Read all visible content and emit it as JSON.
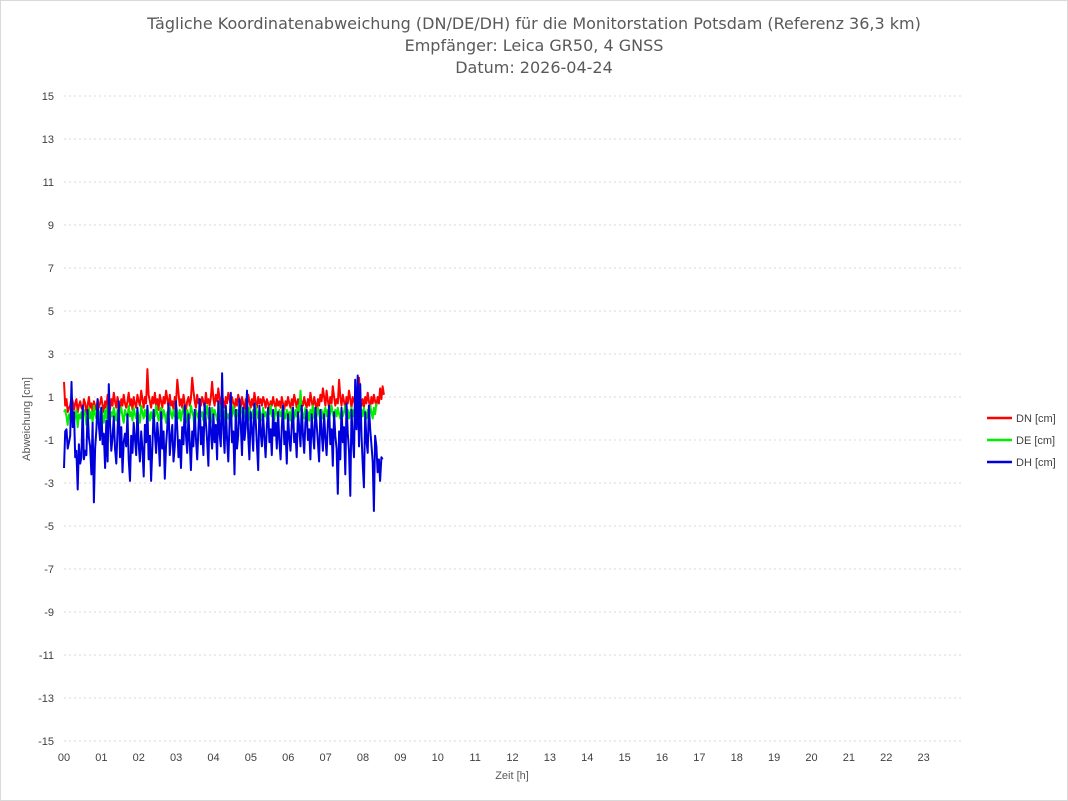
{
  "chart_data": {
    "type": "line",
    "title": [
      "Tägliche Koordinatenabweichung (DN/DE/DH) für die Monitorstation Potsdam (Referenz 36,3 km)",
      "Empfänger: Leica GR50, 4 GNSS",
      "Datum: 2026-04-24"
    ],
    "xlabel": "Zeit [h]",
    "ylabel": "Abweichung [cm]",
    "xlim": [
      0,
      24
    ],
    "ylim": [
      -15,
      15
    ],
    "x_ticks": [
      "00",
      "01",
      "02",
      "03",
      "04",
      "05",
      "06",
      "07",
      "08",
      "09",
      "10",
      "11",
      "12",
      "13",
      "14",
      "15",
      "16",
      "17",
      "18",
      "19",
      "20",
      "21",
      "22",
      "23"
    ],
    "y_ticks": [
      15,
      13,
      11,
      9,
      7,
      5,
      3,
      1,
      -1,
      -3,
      -5,
      -7,
      -9,
      -11,
      -13,
      -15
    ],
    "grid": true,
    "legend_position": "right",
    "sample_interval_h": 0.0333,
    "series": [
      {
        "name": "DN [cm]",
        "color": "#ff0000",
        "values": [
          1.7,
          0.6,
          0.9,
          0.3,
          0.5,
          0.6,
          1.0,
          0.8,
          0.4,
          0.7,
          0.9,
          0.3,
          0.6,
          0.8,
          0.5,
          0.4,
          0.9,
          0.7,
          0.2,
          0.6,
          1.0,
          0.5,
          0.7,
          0.3,
          0.8,
          0.6,
          0.4,
          0.9,
          0.5,
          0.7,
          1.0,
          0.6,
          0.3,
          0.8,
          0.5,
          1.1,
          0.7,
          0.4,
          0.9,
          0.6,
          1.2,
          0.8,
          0.5,
          1.0,
          0.7,
          0.4,
          0.9,
          0.6,
          1.1,
          0.7,
          0.5,
          0.8,
          1.2,
          0.6,
          0.9,
          0.4,
          1.0,
          0.7,
          0.5,
          1.1,
          0.8,
          0.6,
          1.3,
          0.9,
          0.5,
          1.0,
          0.7,
          2.3,
          1.1,
          0.8,
          0.5,
          1.0,
          0.7,
          1.2,
          0.6,
          0.9,
          0.4,
          1.1,
          0.8,
          0.5,
          1.0,
          0.7,
          1.3,
          0.9,
          0.5,
          1.1,
          0.6,
          0.8,
          0.4,
          1.0,
          0.7,
          1.8,
          1.2,
          0.6,
          0.9,
          0.5,
          1.1,
          0.7,
          0.4,
          0.8,
          1.0,
          0.6,
          0.9,
          1.9,
          1.3,
          0.8,
          0.5,
          1.1,
          0.7,
          0.9,
          0.6,
          1.0,
          0.8,
          0.5,
          1.2,
          0.7,
          0.9,
          0.6,
          1.0,
          1.7,
          0.9,
          0.6,
          1.1,
          0.8,
          1.4,
          0.9,
          0.6,
          1.1,
          0.8,
          0.5,
          1.0,
          0.7,
          1.2,
          0.9,
          0.6,
          1.0,
          0.7,
          0.5,
          0.9,
          0.6,
          1.1,
          0.8,
          0.5,
          1.0,
          0.7,
          0.4,
          0.9,
          0.6,
          1.1,
          0.8,
          0.5,
          0.9,
          0.6,
          1.2,
          0.8,
          0.5,
          1.0,
          0.7,
          0.9,
          0.6,
          1.0,
          0.8,
          0.5,
          0.9,
          0.7,
          0.4,
          0.8,
          0.6,
          1.0,
          0.7,
          0.5,
          0.9,
          0.6,
          0.8,
          0.5,
          1.0,
          0.7,
          0.4,
          0.8,
          0.6,
          1.0,
          0.7,
          0.5,
          0.9,
          0.6,
          1.1,
          0.8,
          0.5,
          0.9,
          0.7,
          0.4,
          0.8,
          0.6,
          1.0,
          0.7,
          0.5,
          0.9,
          0.6,
          1.2,
          0.8,
          0.5,
          1.0,
          0.7,
          0.4,
          0.9,
          0.6,
          1.1,
          0.8,
          1.4,
          1.0,
          0.6,
          1.3,
          0.8,
          0.5,
          1.0,
          0.7,
          1.5,
          1.0,
          0.6,
          0.9,
          0.7,
          1.8,
          1.0,
          0.6,
          1.1,
          0.8,
          0.5,
          1.0,
          0.7,
          1.3,
          0.9,
          0.5,
          1.0,
          0.8,
          0.6,
          1.1,
          0.7,
          1.9,
          1.0,
          0.6,
          0.9,
          0.5,
          1.0,
          0.7,
          1.2,
          0.8,
          0.5,
          1.0,
          0.7,
          1.1,
          0.8,
          0.6,
          1.0,
          0.7,
          1.4,
          0.9,
          1.5,
          1.1
        ]
      },
      {
        "name": "DE [cm]",
        "color": "#00ee00",
        "values": [
          0.3,
          0.4,
          0.1,
          -0.3,
          0.2,
          0.0,
          0.5,
          0.3,
          -0.2,
          0.1,
          0.4,
          -0.4,
          0.2,
          0.0,
          0.3,
          -0.1,
          0.4,
          0.2,
          -0.3,
          0.1,
          0.5,
          0.0,
          0.3,
          -0.2,
          0.6,
          0.2,
          0.0,
          0.4,
          -0.1,
          0.3,
          0.5,
          0.1,
          -0.2,
          0.4,
          0.0,
          0.6,
          0.2,
          -0.1,
          0.3,
          0.1,
          0.5,
          0.2,
          -0.1,
          0.4,
          0.0,
          0.3,
          0.5,
          0.1,
          -0.2,
          0.4,
          0.2,
          0.0,
          0.6,
          0.1,
          0.3,
          -0.1,
          0.5,
          0.2,
          0.0,
          0.4,
          0.1,
          -0.2,
          0.6,
          0.3,
          0.0,
          0.4,
          0.1,
          0.5,
          0.2,
          -0.1,
          0.3,
          0.0,
          0.4,
          0.1,
          0.6,
          0.2,
          -0.1,
          0.3,
          0.5,
          0.0,
          0.4,
          0.2,
          -0.2,
          0.3,
          0.1,
          0.5,
          0.2,
          0.0,
          0.4,
          0.1,
          0.6,
          0.3,
          0.0,
          0.4,
          -0.1,
          0.3,
          0.5,
          0.1,
          -0.2,
          0.4,
          0.2,
          0.0,
          0.6,
          0.3,
          0.1,
          -0.6,
          0.4,
          0.2,
          0.0,
          0.5,
          0.1,
          0.3,
          -0.1,
          0.4,
          0.2,
          0.6,
          0.0,
          0.3,
          -0.2,
          0.5,
          0.1,
          0.4,
          0.2,
          -0.1,
          0.3,
          0.6,
          0.1,
          0.4,
          -0.2,
          0.3,
          0.5,
          0.0,
          0.2,
          -0.1,
          0.4,
          0.1,
          0.6,
          0.2,
          0.0,
          0.4,
          0.1,
          -0.2,
          0.3,
          0.5,
          0.1,
          0.4,
          0.0,
          0.3,
          -0.1,
          0.5,
          0.2,
          0.0,
          0.4,
          0.1,
          0.6,
          0.3,
          0.0,
          0.4,
          0.2,
          -0.1,
          0.5,
          0.1,
          0.3,
          0.0,
          0.4,
          0.2,
          0.6,
          0.1,
          0.3,
          -0.1,
          0.5,
          0.2,
          0.0,
          0.4,
          0.1,
          0.3,
          0.6,
          0.2,
          0.0,
          0.4,
          0.1,
          0.3,
          -0.1,
          0.5,
          0.2,
          0.0,
          0.4,
          0.1,
          0.6,
          0.3,
          1.3,
          0.4,
          0.2,
          0.0,
          0.5,
          0.1,
          0.3,
          -0.1,
          0.4,
          0.2,
          0.6,
          0.0,
          0.3,
          0.1,
          0.5,
          0.2,
          -0.1,
          0.4,
          0.0,
          0.3,
          0.5,
          0.1,
          0.4,
          -0.1,
          0.3,
          0.6,
          0.2,
          0.0,
          0.4,
          0.1,
          0.5,
          0.2,
          0.0,
          0.4,
          0.1,
          0.3,
          0.6,
          0.1,
          0.4,
          0.0,
          0.3,
          0.5,
          0.1,
          0.4,
          -0.1,
          0.3,
          0.6,
          0.2,
          0.0,
          0.4,
          0.1,
          0.5,
          0.2,
          0.0,
          0.4,
          0.1,
          0.6,
          0.3,
          0.0,
          0.5,
          0.2,
          0.7
        ]
      },
      {
        "name": "DH [cm]",
        "color": "#0000dd",
        "values": [
          -2.3,
          -0.6,
          -0.5,
          -1.4,
          -1.1,
          -0.8,
          1.7,
          -0.4,
          0.3,
          -1.8,
          -1.5,
          -3.3,
          -1.2,
          -2.1,
          -1.8,
          0.6,
          -1.9,
          -1.5,
          -1.7,
          0.4,
          -0.9,
          -1.3,
          -2.6,
          -0.2,
          -3.9,
          -1.4,
          -0.5,
          0.9,
          -0.3,
          -1.0,
          0.5,
          -1.2,
          -0.7,
          -2.3,
          -0.1,
          -2.0,
          1.6,
          -0.2,
          -1.5,
          -0.9,
          0.1,
          -1.4,
          -2.1,
          -0.6,
          0.8,
          -1.8,
          -0.4,
          -2.5,
          -1.1,
          -0.7,
          -1.3,
          0.2,
          -1.9,
          -2.9,
          -0.8,
          -1.6,
          -0.2,
          -0.9,
          -1.7,
          0.5,
          -1.2,
          -2.0,
          -0.6,
          -1.4,
          -2.7,
          -0.3,
          -1.1,
          0.6,
          -1.9,
          -0.8,
          -2.9,
          -1.3,
          0.4,
          -0.7,
          -1.6,
          -0.2,
          -1.0,
          -2.2,
          0.3,
          -1.4,
          -0.6,
          -2.8,
          -1.2,
          -0.4,
          0.7,
          -1.7,
          -0.9,
          -0.3,
          -2.0,
          -1.3,
          0.8,
          -0.5,
          -1.8,
          -1.0,
          -2.3,
          -0.4,
          -1.2,
          0.6,
          -0.8,
          -1.6,
          0.2,
          -1.1,
          -2.4,
          -0.6,
          -1.3,
          0.4,
          -0.9,
          -1.9,
          -0.5,
          0.9,
          -1.2,
          -0.4,
          -1.7,
          0.7,
          -0.2,
          -1.0,
          -2.2,
          0.5,
          -0.6,
          -1.4,
          0.2,
          -1.1,
          -0.3,
          -1.9,
          0.8,
          -0.7,
          -1.3,
          2.1,
          -0.5,
          -1.6,
          0.6,
          -0.9,
          -2.0,
          -0.3,
          1.2,
          -1.1,
          -0.6,
          -2.6,
          0.4,
          -1.4,
          -0.8,
          0.9,
          -0.2,
          -1.7,
          0.5,
          -1.0,
          -0.4,
          1.3,
          -0.8,
          -1.9,
          0.3,
          -0.5,
          -1.5,
          0.7,
          -0.1,
          -1.2,
          -2.4,
          0.6,
          -0.6,
          -1.3,
          0.2,
          -0.9,
          -1.8,
          -0.3,
          0.5,
          -1.1,
          -0.5,
          -1.7,
          0.4,
          -0.8,
          -0.2,
          -1.4,
          0.3,
          -1.0,
          -1.9,
          -0.4,
          0.6,
          -1.2,
          -0.6,
          -2.1,
          0.2,
          -0.9,
          -1.5,
          -0.3,
          0.5,
          -1.1,
          -0.7,
          -1.8,
          0.3,
          -0.4,
          -1.3,
          0.6,
          -0.8,
          -1.6,
          -0.2,
          0.4,
          -1.0,
          -0.5,
          -1.9,
          0.2,
          -0.7,
          -1.4,
          0.5,
          -0.3,
          -1.1,
          -2.0,
          0.4,
          -0.6,
          -1.5,
          0.2,
          -0.9,
          -1.7,
          -0.2,
          0.6,
          -1.2,
          -0.5,
          -2.2,
          0.3,
          -0.8,
          -1.4,
          -3.5,
          -0.6,
          -1.9,
          0.5,
          -1.1,
          -0.4,
          -2.6,
          0.7,
          -0.7,
          -1.5,
          -3.6,
          0.4,
          -0.9,
          -1.8,
          1.8,
          -0.5,
          2.0,
          -1.3,
          1.6,
          -0.8,
          -2.1,
          -3.2,
          0.3,
          -1.0,
          -1.6,
          0.6,
          -0.5,
          -1.2,
          -2.0,
          -4.3,
          -0.8,
          -1.3,
          -2.5,
          -1.9,
          -2.9,
          -1.8,
          -1.9
        ]
      }
    ]
  }
}
